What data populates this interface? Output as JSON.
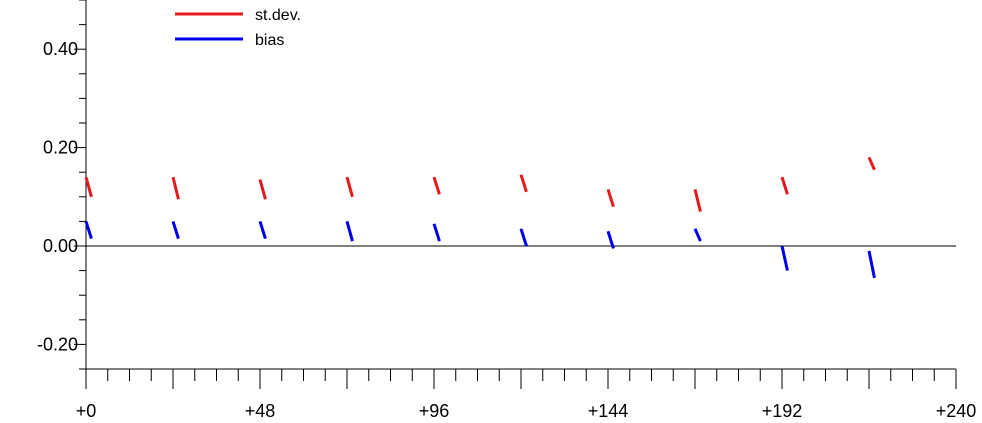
{
  "chart_data": {
    "type": "line",
    "x_range": [
      0,
      240
    ],
    "y_range": [
      -0.25,
      0.5
    ],
    "x_ticks": [
      0,
      48,
      96,
      144,
      192,
      240
    ],
    "x_tick_labels": [
      "+0",
      "+48",
      "+96",
      "+144",
      "+192",
      "+240"
    ],
    "x_minor_step": 6,
    "y_ticks": [
      0.4,
      0.2,
      0.0,
      -0.2
    ],
    "y_tick_labels": [
      "0.40",
      "0.20",
      "0.00",
      "-0.20"
    ],
    "y_minor_step": 0.05,
    "zero_line": true,
    "legend_position": "top-left",
    "series": [
      {
        "name": "st.dev.",
        "color": "#e41a1c",
        "segments": [
          {
            "x0": 0,
            "x1": 1.5,
            "y0": 0.14,
            "y1": 0.1
          },
          {
            "x0": 24,
            "x1": 25.5,
            "y0": 0.14,
            "y1": 0.095
          },
          {
            "x0": 48,
            "x1": 49.5,
            "y0": 0.135,
            "y1": 0.095
          },
          {
            "x0": 72,
            "x1": 73.5,
            "y0": 0.14,
            "y1": 0.1
          },
          {
            "x0": 96,
            "x1": 97.5,
            "y0": 0.14,
            "y1": 0.105
          },
          {
            "x0": 120,
            "x1": 121.5,
            "y0": 0.145,
            "y1": 0.11
          },
          {
            "x0": 144,
            "x1": 145.5,
            "y0": 0.115,
            "y1": 0.08
          },
          {
            "x0": 168,
            "x1": 169.5,
            "y0": 0.115,
            "y1": 0.07
          },
          {
            "x0": 192,
            "x1": 193.5,
            "y0": 0.14,
            "y1": 0.105
          },
          {
            "x0": 216,
            "x1": 217.5,
            "y0": 0.18,
            "y1": 0.155
          }
        ]
      },
      {
        "name": "bias",
        "color": "#0000ee",
        "segments": [
          {
            "x0": 0,
            "x1": 1.5,
            "y0": 0.05,
            "y1": 0.015
          },
          {
            "x0": 24,
            "x1": 25.5,
            "y0": 0.05,
            "y1": 0.015
          },
          {
            "x0": 48,
            "x1": 49.5,
            "y0": 0.05,
            "y1": 0.015
          },
          {
            "x0": 72,
            "x1": 73.5,
            "y0": 0.05,
            "y1": 0.01
          },
          {
            "x0": 96,
            "x1": 97.5,
            "y0": 0.045,
            "y1": 0.01
          },
          {
            "x0": 120,
            "x1": 121.5,
            "y0": 0.035,
            "y1": 0.0
          },
          {
            "x0": 144,
            "x1": 145.5,
            "y0": 0.03,
            "y1": -0.005
          },
          {
            "x0": 168,
            "x1": 169.5,
            "y0": 0.035,
            "y1": 0.01
          },
          {
            "x0": 192,
            "x1": 193.5,
            "y0": 0.0,
            "y1": -0.05
          },
          {
            "x0": 216,
            "x1": 217.5,
            "y0": -0.01,
            "y1": -0.065
          }
        ]
      }
    ]
  }
}
